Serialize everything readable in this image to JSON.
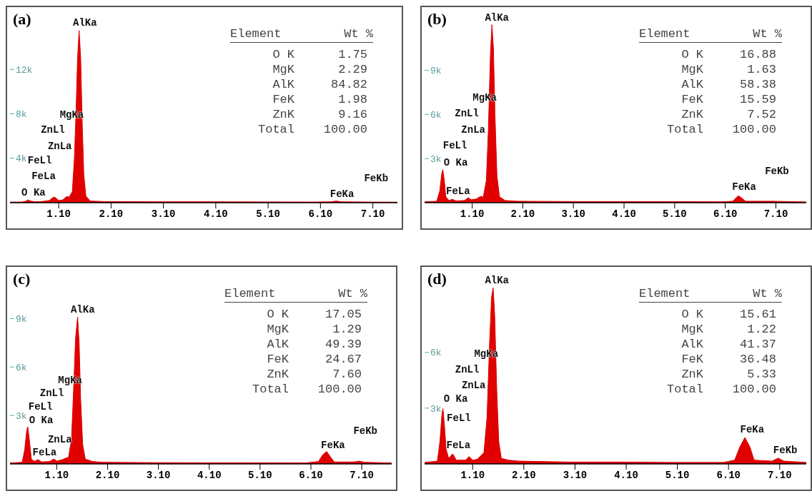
{
  "chart_data": [
    {
      "type": "area",
      "title": "(a)",
      "color": "#e00000",
      "xlim": [
        0.17,
        7.57
      ],
      "ylim": [
        0,
        17600
      ],
      "xticks": [
        {
          "value": 1.1,
          "label": "1.10"
        },
        {
          "value": 2.1,
          "label": "2.10"
        },
        {
          "value": 3.1,
          "label": "3.10"
        },
        {
          "value": 4.1,
          "label": "4.10"
        },
        {
          "value": 5.1,
          "label": "5.10"
        },
        {
          "value": 6.1,
          "label": "6.10"
        },
        {
          "value": 7.1,
          "label": "7.10"
        }
      ],
      "yticks": [
        {
          "value": 4000,
          "label": "4k"
        },
        {
          "value": 8000,
          "label": "8k"
        },
        {
          "value": 12000,
          "label": "12k"
        }
      ],
      "x": [
        0.17,
        0.4,
        0.48,
        0.52,
        0.56,
        0.65,
        0.72,
        0.8,
        0.92,
        1.0,
        1.04,
        1.1,
        1.18,
        1.25,
        1.3,
        1.36,
        1.4,
        1.43,
        1.46,
        1.49,
        1.52,
        1.55,
        1.58,
        1.62,
        1.7,
        2.0,
        3.0,
        4.0,
        5.0,
        6.0,
        6.3,
        6.4,
        6.5,
        7.0,
        7.57
      ],
      "values": [
        60,
        60,
        150,
        250,
        150,
        80,
        100,
        120,
        200,
        500,
        450,
        200,
        250,
        550,
        500,
        1000,
        4000,
        8000,
        13000,
        15500,
        13000,
        7000,
        2500,
        600,
        150,
        100,
        80,
        80,
        70,
        60,
        80,
        150,
        80,
        60,
        50
      ],
      "annotations": [
        "AlKa",
        "MgKa",
        "ZnLl",
        "ZnLa",
        "FeLl",
        "FeLa",
        "O Ka",
        "FeKb",
        "FeKa",
        "Element",
        "Wt %",
        "O K",
        "1.75",
        "MgK",
        "2.29",
        "AlK",
        "84.82",
        "FeK",
        "1.98",
        "ZnK",
        "9.16",
        "Total",
        "100.00"
      ]
    },
    {
      "type": "area",
      "title": "(b)",
      "color": "#e00000",
      "xlim": [
        0.16,
        7.7
      ],
      "ylim": [
        0,
        13300
      ],
      "xticks": [
        {
          "value": 1.1,
          "label": "1.10"
        },
        {
          "value": 2.1,
          "label": "2.10"
        },
        {
          "value": 3.1,
          "label": "3.10"
        },
        {
          "value": 4.1,
          "label": "4.10"
        },
        {
          "value": 5.1,
          "label": "5.10"
        },
        {
          "value": 6.1,
          "label": "6.10"
        },
        {
          "value": 7.1,
          "label": "7.10"
        }
      ],
      "yticks": [
        {
          "value": 3000,
          "label": "3k"
        },
        {
          "value": 6000,
          "label": "6k"
        },
        {
          "value": 9000,
          "label": "9k"
        }
      ],
      "x": [
        0.16,
        0.4,
        0.46,
        0.5,
        0.52,
        0.55,
        0.58,
        0.64,
        0.71,
        0.78,
        0.95,
        1.02,
        1.08,
        1.18,
        1.26,
        1.32,
        1.38,
        1.42,
        1.46,
        1.49,
        1.52,
        1.55,
        1.59,
        1.64,
        1.75,
        2.0,
        3.0,
        4.0,
        5.0,
        6.0,
        6.25,
        6.32,
        6.36,
        6.42,
        6.5,
        7.05,
        7.7
      ],
      "values": [
        60,
        100,
        800,
        2000,
        2250,
        1500,
        400,
        150,
        230,
        120,
        150,
        340,
        200,
        250,
        420,
        400,
        1500,
        5000,
        10000,
        12100,
        10500,
        6000,
        1800,
        400,
        150,
        100,
        80,
        70,
        70,
        60,
        100,
        350,
        470,
        330,
        100,
        100,
        50
      ],
      "annotations": [
        "AlKa",
        "MgKa",
        "ZnLl",
        "ZnLa",
        "FeLl",
        "O Ka",
        "FeLa",
        "FeKb",
        "FeKa",
        "Element",
        "Wt %",
        "O K",
        "16.88",
        "MgK",
        "1.63",
        "AlK",
        "58.38",
        "FeK",
        "15.59",
        "ZnK",
        "7.52",
        "Total",
        "100.00"
      ]
    },
    {
      "type": "area",
      "title": "(c)",
      "color": "#e00000",
      "xlim": [
        0.18,
        7.69
      ],
      "ylim": [
        0,
        12200
      ],
      "xticks": [
        {
          "value": 1.1,
          "label": "1.10"
        },
        {
          "value": 2.1,
          "label": "2.10"
        },
        {
          "value": 3.1,
          "label": "3.10"
        },
        {
          "value": 4.1,
          "label": "4.10"
        },
        {
          "value": 5.1,
          "label": "5.10"
        },
        {
          "value": 6.1,
          "label": "6.10"
        },
        {
          "value": 7.1,
          "label": "7.10"
        }
      ],
      "yticks": [
        {
          "value": 3000,
          "label": "3k"
        },
        {
          "value": 6000,
          "label": "6k"
        },
        {
          "value": 9000,
          "label": "9k"
        }
      ],
      "x": [
        0.18,
        0.42,
        0.47,
        0.51,
        0.53,
        0.56,
        0.6,
        0.66,
        0.73,
        0.8,
        0.96,
        1.04,
        1.1,
        1.2,
        1.27,
        1.33,
        1.39,
        1.43,
        1.47,
        1.51,
        1.54,
        1.57,
        1.61,
        1.66,
        1.8,
        2.0,
        3.0,
        4.0,
        5.0,
        6.0,
        6.25,
        6.33,
        6.41,
        6.48,
        6.56,
        6.95,
        7.05,
        7.15,
        7.69
      ],
      "values": [
        60,
        100,
        900,
        2100,
        2290,
        1500,
        300,
        150,
        270,
        120,
        150,
        300,
        180,
        250,
        350,
        400,
        1500,
        4500,
        7800,
        9100,
        7500,
        4000,
        1200,
        300,
        150,
        100,
        80,
        70,
        70,
        60,
        150,
        550,
        770,
        450,
        120,
        120,
        170,
        100,
        60
      ],
      "annotations": [
        "AlKa",
        "MgKa",
        "ZnLl",
        "FeLl",
        "O Ka",
        "ZnLa",
        "FeLa",
        "FeKb",
        "FeKa",
        "Element",
        "Wt %",
        "O K",
        "17.05",
        "MgK",
        "1.29",
        "AlK",
        "49.39",
        "FeK",
        "24.67",
        "ZnK",
        "7.60",
        "Total",
        "100.00"
      ]
    },
    {
      "type": "area",
      "title": "(d)",
      "color": "#e00000",
      "xlim": [
        0.16,
        7.62
      ],
      "ylim": [
        0,
        10600
      ],
      "xticks": [
        {
          "value": 1.1,
          "label": "1.10"
        },
        {
          "value": 2.1,
          "label": "2.10"
        },
        {
          "value": 3.1,
          "label": "3.10"
        },
        {
          "value": 4.1,
          "label": "4.10"
        },
        {
          "value": 5.1,
          "label": "5.10"
        },
        {
          "value": 6.1,
          "label": "6.10"
        },
        {
          "value": 7.1,
          "label": "7.10"
        }
      ],
      "yticks": [
        {
          "value": 3000,
          "label": "3k"
        },
        {
          "value": 6000,
          "label": "6k"
        }
      ],
      "x": [
        0.16,
        0.41,
        0.46,
        0.5,
        0.52,
        0.55,
        0.58,
        0.63,
        0.71,
        0.78,
        0.96,
        1.03,
        1.1,
        1.19,
        1.26,
        1.32,
        1.38,
        1.43,
        1.47,
        1.5,
        1.53,
        1.57,
        1.61,
        1.66,
        1.8,
        2.0,
        3.0,
        4.0,
        5.0,
        6.0,
        6.22,
        6.32,
        6.42,
        6.52,
        6.6,
        6.95,
        7.07,
        7.18,
        7.62
      ],
      "values": [
        80,
        150,
        1200,
        2700,
        2970,
        2000,
        800,
        300,
        540,
        200,
        200,
        390,
        200,
        250,
        440,
        600,
        2500,
        6500,
        9000,
        9470,
        8000,
        4000,
        1200,
        300,
        200,
        150,
        100,
        100,
        80,
        80,
        200,
        900,
        1420,
        900,
        200,
        150,
        310,
        150,
        80
      ],
      "annotations": [
        "AlKa",
        "MgKa",
        "ZnLl",
        "ZnLa",
        "O Ka",
        "FeLl",
        "FeLa",
        "FeKa",
        "FeKb",
        "Element",
        "Wt %",
        "O K",
        "15.61",
        "MgK",
        "1.22",
        "AlK",
        "41.37",
        "FeK",
        "36.48",
        "ZnK",
        "5.33",
        "Total",
        "100.00"
      ]
    }
  ]
}
